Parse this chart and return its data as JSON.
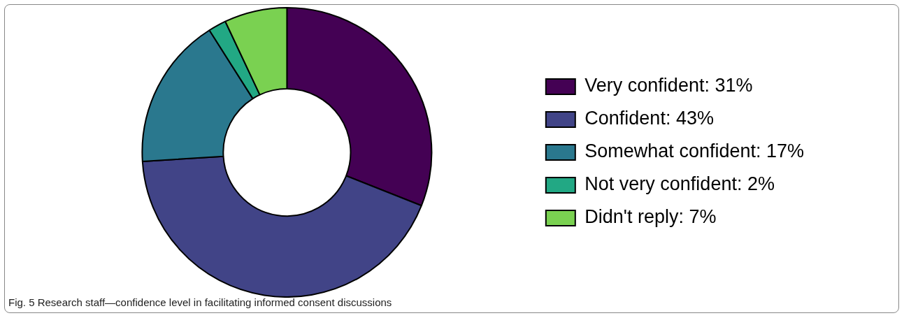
{
  "chart_data": {
    "type": "donut",
    "categories": [
      "Very confident: 31%",
      "Confident: 43%",
      "Somewhat confident: 17%",
      "Not very confident: 2%",
      "Didn't reply: 7%"
    ],
    "values": [
      31,
      43,
      17,
      2,
      7
    ],
    "colors": [
      "#440154",
      "#414487",
      "#2a788e",
      "#22a884",
      "#7ad151"
    ],
    "legend": "right",
    "annotations": [
      "Fig. 5 Research staff—confidence level in facilitating informed consent discussions"
    ]
  }
}
